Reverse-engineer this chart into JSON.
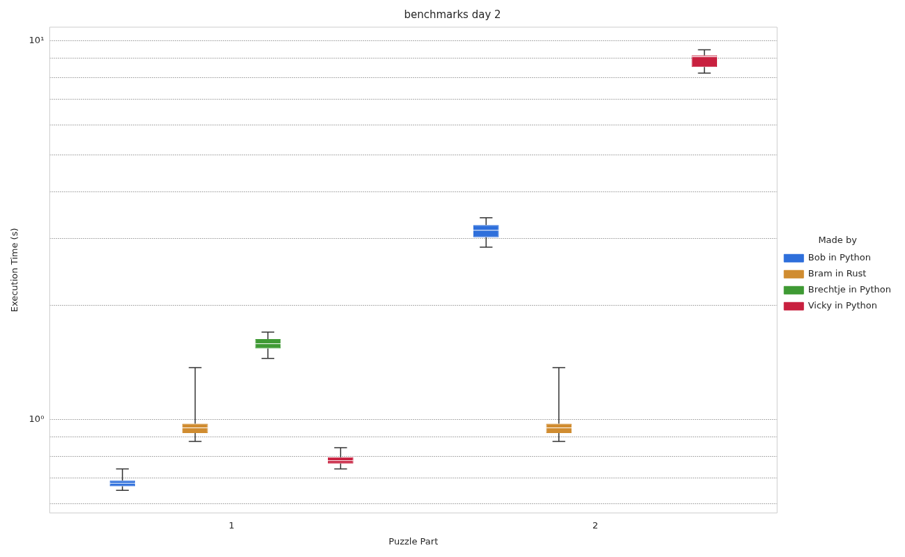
{
  "chart_data": {
    "type": "box",
    "title": "benchmarks day 2",
    "xlabel": "Puzzle Part",
    "ylabel": "Execution Time (s)",
    "legend_title": "Made by",
    "legend": "right",
    "log": true,
    "grid": "y",
    "categories": [
      "1",
      "2"
    ],
    "ylim": [
      0.566,
      10.87
    ],
    "yticks": [
      {
        "value": 0.6,
        "label": null
      },
      {
        "value": 0.7,
        "label": null
      },
      {
        "value": 0.8,
        "label": null
      },
      {
        "value": 0.9,
        "label": null
      },
      {
        "value": 1,
        "label": "10⁰"
      },
      {
        "value": 2,
        "label": null
      },
      {
        "value": 3,
        "label": null
      },
      {
        "value": 4,
        "label": null
      },
      {
        "value": 5,
        "label": null
      },
      {
        "value": 6,
        "label": null
      },
      {
        "value": 7,
        "label": null
      },
      {
        "value": 8,
        "label": null
      },
      {
        "value": 9,
        "label": null
      },
      {
        "value": 10,
        "label": "10¹"
      }
    ],
    "series": [
      {
        "name": "Bob in Python",
        "color": "#2e6fdb",
        "boxes": [
          {
            "low": 0.65,
            "q1": 0.666,
            "median": 0.678,
            "q3": 0.689,
            "high": 0.74
          },
          {
            "low": 2.85,
            "q1": 3.03,
            "median": 3.16,
            "q3": 3.26,
            "high": 3.41
          }
        ]
      },
      {
        "name": "Bram in Rust",
        "color": "#d08c30",
        "boxes": [
          {
            "low": 0.875,
            "q1": 0.92,
            "median": 0.95,
            "q3": 0.975,
            "high": 1.37
          },
          {
            "low": 0.875,
            "q1": 0.92,
            "median": 0.95,
            "q3": 0.975,
            "high": 1.37
          }
        ]
      },
      {
        "name": "Brechtje in Python",
        "color": "#3f9a34",
        "boxes": [
          {
            "low": 1.45,
            "q1": 1.54,
            "median": 1.585,
            "q3": 1.63,
            "high": 1.7
          },
          null
        ]
      },
      {
        "name": "Vicky in Python",
        "color": "#c8203f",
        "boxes": [
          {
            "low": 0.74,
            "q1": 0.765,
            "median": 0.778,
            "q3": 0.794,
            "high": 0.842
          },
          {
            "low": 8.22,
            "q1": 8.53,
            "median": 9.08,
            "q3": 9.16,
            "high": 9.47
          }
        ]
      }
    ]
  }
}
